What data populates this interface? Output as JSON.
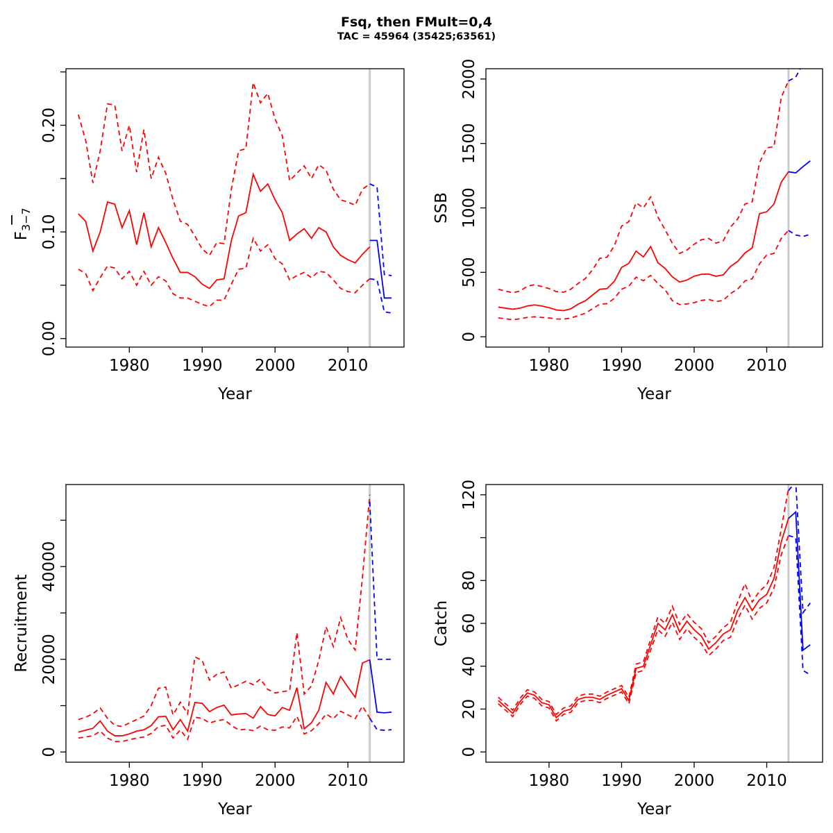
{
  "title": "Fsq, then FMult=0,4",
  "subtitle": "TAC = 45964 (35425;63561)",
  "palette": {
    "historical": "#ff0000",
    "projection": "#0000ff",
    "reference_line": "#cbcbcb",
    "axis": "#000000"
  },
  "chart_data": [
    {
      "name": "fbar",
      "type": "line",
      "xlabel": "Year",
      "ylabel": {
        "base": "F",
        "overline": true,
        "sub": "3−7"
      },
      "xlim": [
        1971.3,
        2017.7
      ],
      "ylim": [
        -0.008,
        0.253
      ],
      "grid": false,
      "legend": "none",
      "xticks": [
        1980,
        1990,
        2000,
        2010
      ],
      "xtick_labels": [
        "1980",
        "1990",
        "2000",
        "2010"
      ],
      "yticks": [
        0,
        0.05,
        0.1,
        0.15,
        0.2,
        0.25
      ],
      "ytick_labels": [
        "0.00",
        "",
        "0.10",
        "",
        "0.20",
        ""
      ],
      "vline_x": 2013,
      "series": [
        {
          "name": "upper-95ci",
          "role": "historical",
          "dash": true,
          "x_start": 1973,
          "values": [
            0.21,
            0.186,
            0.146,
            0.176,
            0.22,
            0.219,
            0.176,
            0.2,
            0.156,
            0.196,
            0.15,
            0.17,
            0.155,
            0.13,
            0.11,
            0.107,
            0.096,
            0.084,
            0.078,
            0.09,
            0.089,
            0.14,
            0.176,
            0.178,
            0.24,
            0.221,
            0.23,
            0.206,
            0.19,
            0.148,
            0.155,
            0.162,
            0.15,
            0.163,
            0.158,
            0.14,
            0.13,
            0.128,
            0.125,
            0.14,
            0.145
          ]
        },
        {
          "name": "median",
          "role": "historical",
          "dash": false,
          "x_start": 1973,
          "values": [
            0.117,
            0.11,
            0.082,
            0.1,
            0.128,
            0.126,
            0.104,
            0.12,
            0.088,
            0.118,
            0.086,
            0.104,
            0.09,
            0.075,
            0.062,
            0.062,
            0.058,
            0.051,
            0.047,
            0.055,
            0.056,
            0.092,
            0.115,
            0.118,
            0.154,
            0.138,
            0.145,
            0.13,
            0.118,
            0.092,
            0.098,
            0.103,
            0.094,
            0.104,
            0.1,
            0.086,
            0.078,
            0.074,
            0.071,
            0.079,
            0.086
          ]
        },
        {
          "name": "lower-95ci",
          "role": "historical",
          "dash": true,
          "x_start": 1973,
          "values": [
            0.065,
            0.061,
            0.045,
            0.057,
            0.068,
            0.066,
            0.056,
            0.063,
            0.05,
            0.063,
            0.05,
            0.058,
            0.054,
            0.042,
            0.038,
            0.038,
            0.035,
            0.032,
            0.03,
            0.036,
            0.036,
            0.051,
            0.065,
            0.066,
            0.094,
            0.082,
            0.088,
            0.075,
            0.07,
            0.055,
            0.059,
            0.062,
            0.057,
            0.063,
            0.062,
            0.055,
            0.047,
            0.044,
            0.043,
            0.05,
            0.056
          ]
        },
        {
          "name": "proj-upper-95ci",
          "role": "projection",
          "dash": true,
          "x_start": 2013,
          "values": [
            0.145,
            0.142,
            0.06,
            0.059
          ]
        },
        {
          "name": "proj-median",
          "role": "projection",
          "dash": false,
          "x_start": 2013,
          "values": [
            0.092,
            0.092,
            0.038,
            0.038
          ]
        },
        {
          "name": "proj-lower-95ci",
          "role": "projection",
          "dash": true,
          "x_start": 2013,
          "values": [
            0.056,
            0.055,
            0.025,
            0.024
          ]
        }
      ]
    },
    {
      "name": "ssb",
      "type": "line",
      "xlabel": "Year",
      "ylabel": {
        "base": "SSB"
      },
      "xlim": [
        1971.3,
        2017.7
      ],
      "ylim": [
        -80,
        2080
      ],
      "grid": false,
      "legend": "none",
      "xticks": [
        1980,
        1990,
        2000,
        2010
      ],
      "xtick_labels": [
        "1980",
        "1990",
        "2000",
        "2010"
      ],
      "yticks": [
        0,
        500,
        1000,
        1500,
        2000
      ],
      "ytick_labels": [
        "0",
        "500",
        "1000",
        "1500",
        "2000"
      ],
      "vline_x": 2013,
      "series": [
        {
          "name": "upper-95ci",
          "role": "historical",
          "dash": true,
          "x_start": 1973,
          "values": [
            369,
            355,
            342,
            355,
            392,
            404,
            390,
            374,
            351,
            346,
            369,
            413,
            452,
            520,
            609,
            618,
            707,
            859,
            894,
            1040,
            1000,
            1085,
            930,
            830,
            725,
            647,
            673,
            718,
            753,
            763,
            727,
            744,
            851,
            914,
            1030,
            1047,
            1350,
            1466,
            1475,
            1858,
            1985
          ]
        },
        {
          "name": "median",
          "role": "historical",
          "dash": false,
          "x_start": 1973,
          "values": [
            230,
            222,
            214,
            222,
            239,
            247,
            239,
            226,
            208,
            203,
            217,
            253,
            279,
            324,
            369,
            374,
            431,
            538,
            570,
            665,
            620,
            700,
            575,
            530,
            465,
            425,
            440,
            470,
            485,
            487,
            470,
            480,
            545,
            585,
            650,
            690,
            955,
            970,
            1030,
            1200,
            1280
          ]
        },
        {
          "name": "lower-95ci",
          "role": "historical",
          "dash": true,
          "x_start": 1973,
          "values": [
            146,
            140,
            132,
            140,
            150,
            155,
            150,
            146,
            138,
            137,
            145,
            164,
            182,
            218,
            253,
            257,
            298,
            369,
            392,
            463,
            435,
            476,
            413,
            365,
            280,
            250,
            255,
            265,
            282,
            290,
            273,
            282,
            335,
            370,
            433,
            450,
            566,
            634,
            647,
            763,
            825
          ]
        },
        {
          "name": "proj-upper-95ci",
          "role": "projection",
          "dash": true,
          "x_start": 2013,
          "values": [
            1985,
            2015,
            2120,
            2200
          ]
        },
        {
          "name": "proj-median",
          "role": "projection",
          "dash": false,
          "x_start": 2013,
          "values": [
            1280,
            1272,
            1320,
            1365
          ]
        },
        {
          "name": "proj-lower-95ci",
          "role": "projection",
          "dash": true,
          "x_start": 2013,
          "values": [
            825,
            790,
            778,
            795
          ]
        }
      ]
    },
    {
      "name": "recruitment",
      "type": "line",
      "xlabel": "Year",
      "ylabel": {
        "base": "Recruitment"
      },
      "xlim": [
        1971.3,
        2017.7
      ],
      "ylim": [
        -2200,
        57700
      ],
      "grid": false,
      "legend": "none",
      "xticks": [
        1980,
        1990,
        2000,
        2010
      ],
      "xtick_labels": [
        "1980",
        "1990",
        "2000",
        "2010"
      ],
      "yticks": [
        0,
        10000,
        20000,
        30000,
        40000,
        50000
      ],
      "ytick_labels": [
        "0",
        "",
        "20000",
        "",
        "40000",
        ""
      ],
      "vline_x": 2013,
      "series": [
        {
          "name": "upper-95ci",
          "role": "historical",
          "dash": true,
          "x_start": 1973,
          "values": [
            7000,
            7500,
            8250,
            9500,
            7250,
            5750,
            5500,
            6250,
            7000,
            7750,
            10000,
            13750,
            14000,
            8000,
            10750,
            8250,
            20500,
            19750,
            15500,
            16750,
            17250,
            13750,
            14500,
            15250,
            14500,
            15750,
            13500,
            12750,
            13000,
            13250,
            25750,
            12500,
            14250,
            19750,
            27000,
            22750,
            29000,
            24250,
            22000,
            37750,
            55500
          ]
        },
        {
          "name": "median",
          "role": "historical",
          "dash": false,
          "x_start": 1973,
          "values": [
            4300,
            4700,
            5100,
            6700,
            4500,
            3500,
            3500,
            3900,
            4500,
            4800,
            5700,
            7600,
            7700,
            4800,
            7000,
            4500,
            10700,
            10500,
            8700,
            9600,
            10100,
            8000,
            8200,
            8300,
            7300,
            9800,
            8100,
            7800,
            9600,
            9000,
            13900,
            5000,
            6300,
            9000,
            15000,
            12500,
            16300,
            14000,
            11800,
            19200,
            19900
          ]
        },
        {
          "name": "lower-95ci",
          "role": "historical",
          "dash": true,
          "x_start": 1973,
          "values": [
            3000,
            3250,
            3500,
            4500,
            3000,
            2250,
            2250,
            2650,
            3000,
            3250,
            4000,
            5500,
            5750,
            3000,
            4750,
            2750,
            7500,
            7250,
            6250,
            6750,
            7000,
            5750,
            4750,
            4900,
            4600,
            5600,
            4800,
            4700,
            5400,
            5200,
            7700,
            3900,
            4600,
            6100,
            8200,
            7200,
            8800,
            8000,
            7200,
            9900,
            7300
          ]
        },
        {
          "name": "proj-upper-95ci",
          "role": "projection",
          "dash": true,
          "x_start": 2013,
          "values": [
            54000,
            20000,
            20000,
            20000
          ]
        },
        {
          "name": "proj-median",
          "role": "projection",
          "dash": false,
          "x_start": 2013,
          "values": [
            19900,
            8600,
            8450,
            8600
          ]
        },
        {
          "name": "proj-lower-95ci",
          "role": "projection",
          "dash": true,
          "x_start": 2013,
          "values": [
            7300,
            4800,
            4700,
            4800
          ]
        }
      ]
    },
    {
      "name": "catch",
      "type": "line",
      "xlabel": "Year",
      "ylabel": {
        "base": "Catch"
      },
      "xlim": [
        1971.3,
        2017.7
      ],
      "ylim": [
        -4.8,
        124.8
      ],
      "grid": false,
      "legend": "none",
      "xticks": [
        1980,
        1990,
        2000,
        2010
      ],
      "xtick_labels": [
        "1980",
        "1990",
        "2000",
        "2010"
      ],
      "yticks": [
        0,
        20,
        40,
        60,
        80,
        100,
        120
      ],
      "ytick_labels": [
        "0",
        "20",
        "40",
        "60",
        "80",
        "",
        "120"
      ],
      "vline_x": 2013,
      "series": [
        {
          "name": "upper-95ci",
          "role": "historical",
          "dash": true,
          "x_start": 1973,
          "values": [
            25.5,
            22.5,
            19.5,
            25,
            29,
            28,
            24.5,
            23.5,
            17.5,
            20.5,
            21.5,
            26,
            27,
            27,
            26,
            28,
            29.5,
            31,
            25.5,
            41,
            42,
            52.5,
            63,
            60,
            68,
            59.5,
            64.5,
            60.5,
            57.5,
            51,
            54,
            58,
            60.5,
            70,
            78.5,
            70,
            75,
            78,
            86,
            104,
            123
          ]
        },
        {
          "name": "median",
          "role": "historical",
          "dash": false,
          "x_start": 1973,
          "values": [
            24,
            21,
            18,
            23.5,
            27.5,
            26.5,
            23,
            22,
            16,
            19,
            20,
            24.5,
            25.5,
            25.5,
            24.5,
            26.5,
            28,
            29.5,
            24,
            39,
            40,
            50,
            60,
            57,
            64,
            56,
            61,
            57,
            54,
            48,
            51,
            55,
            57,
            66,
            72,
            66,
            71,
            73.5,
            81,
            98,
            109
          ]
        },
        {
          "name": "lower-95ci",
          "role": "historical",
          "dash": true,
          "x_start": 1973,
          "values": [
            22.5,
            19.5,
            16.5,
            22,
            26,
            25,
            21.5,
            20.5,
            14.5,
            17.5,
            18.5,
            23,
            24,
            24,
            23,
            25,
            26.5,
            28,
            22.5,
            37,
            38,
            47.5,
            57,
            54,
            60.5,
            52.5,
            57.5,
            53.5,
            50.5,
            45,
            48,
            52,
            53.5,
            62,
            68.5,
            62,
            67,
            69.5,
            76.5,
            92,
            101
          ]
        },
        {
          "name": "proj-upper-95ci",
          "role": "projection",
          "dash": true,
          "x_start": 2013,
          "values": [
            122,
            126,
            65,
            69.5
          ]
        },
        {
          "name": "proj-median",
          "role": "projection",
          "dash": false,
          "x_start": 2013,
          "values": [
            109,
            112,
            47.5,
            50
          ]
        },
        {
          "name": "proj-lower-95ci",
          "role": "projection",
          "dash": true,
          "x_start": 2013,
          "values": [
            101,
            100,
            38,
            36
          ]
        }
      ]
    }
  ]
}
